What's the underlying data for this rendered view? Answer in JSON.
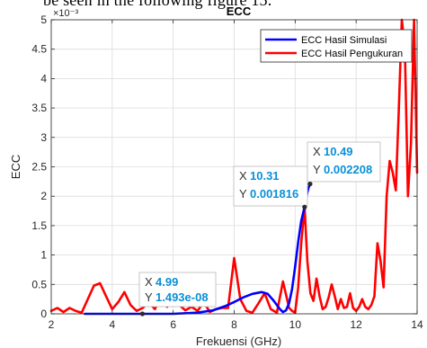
{
  "caption": "be seen in the following figure 15.",
  "chart_data": {
    "type": "line",
    "title": "ECC",
    "xlabel": "Frekuensi (GHz)",
    "ylabel": "ECC",
    "xlim": [
      2,
      14
    ],
    "ylim": [
      0,
      0.005
    ],
    "x_ticks": [
      2,
      4,
      6,
      8,
      10,
      12,
      14
    ],
    "x_tick_labels": [
      "2",
      "4",
      "6",
      "8",
      "10",
      "12",
      "14"
    ],
    "y_ticks": [
      0,
      0.0005,
      0.001,
      0.0015,
      0.002,
      0.0025,
      0.003,
      0.0035,
      0.004,
      0.0045,
      0.005
    ],
    "y_tick_labels": [
      "0",
      "0.5",
      "1",
      "1.5",
      "2",
      "2.5",
      "3",
      "3.5",
      "4",
      "4.5",
      "5"
    ],
    "y_exponent_label": "×10⁻³",
    "grid": true,
    "legend_position": "top-right",
    "series": [
      {
        "name": "ECC Hasil Simulasi",
        "color": "#0000ff",
        "x": [
          3.1,
          4.0,
          5.0,
          6.0,
          6.8,
          7.3,
          7.7,
          8.0,
          8.3,
          8.6,
          8.9,
          9.1,
          9.3,
          9.5,
          9.6,
          9.7,
          9.8,
          9.9,
          10.0,
          10.1,
          10.2,
          10.31,
          10.35,
          10.4,
          10.45,
          10.49
        ],
        "y": [
          0,
          0,
          1.493e-08,
          0,
          2e-05,
          6e-05,
          0.00013,
          0.0002,
          0.00028,
          0.00034,
          0.00037,
          0.00034,
          0.00022,
          8e-05,
          3e-05,
          6e-05,
          0.00018,
          0.00042,
          0.0008,
          0.00122,
          0.00158,
          0.001816,
          0.00193,
          0.00207,
          0.00216,
          0.002208
        ]
      },
      {
        "name": "ECC Hasil Pengukuran",
        "color": "#ff0000",
        "x": [
          2.0,
          2.2,
          2.4,
          2.6,
          2.8,
          3.0,
          3.2,
          3.4,
          3.6,
          3.8,
          4.0,
          4.2,
          4.4,
          4.6,
          4.8,
          5.0,
          5.2,
          5.4,
          5.6,
          5.8,
          6.0,
          6.2,
          6.4,
          6.6,
          6.8,
          7.0,
          7.2,
          7.4,
          7.6,
          7.8,
          8.0,
          8.2,
          8.4,
          8.6,
          8.8,
          9.0,
          9.2,
          9.4,
          9.6,
          9.8,
          9.9,
          10.0,
          10.1,
          10.2,
          10.31,
          10.4,
          10.5,
          10.6,
          10.7,
          10.8,
          10.9,
          11.0,
          11.1,
          11.2,
          11.3,
          11.4,
          11.5,
          11.6,
          11.7,
          11.8,
          11.9,
          12.0,
          12.1,
          12.2,
          12.3,
          12.4,
          12.5,
          12.6,
          12.7,
          12.8,
          12.9,
          13.0,
          13.1,
          13.2,
          13.3,
          13.4,
          13.5,
          13.6,
          13.7,
          13.8,
          13.9,
          14.0
        ],
        "y": [
          5e-05,
          0.0001,
          3e-05,
          0.0001,
          5e-05,
          2e-05,
          0.00025,
          0.00048,
          0.00052,
          0.0003,
          8e-05,
          0.0002,
          0.00037,
          0.00015,
          5e-05,
          0.0001,
          0.0002,
          8e-05,
          0.00032,
          0.00012,
          0.0004,
          0.00015,
          6e-05,
          0.00012,
          5e-05,
          0.0002,
          3e-05,
          8e-05,
          0.0001,
          0.0001,
          0.00095,
          0.00025,
          5e-05,
          2e-05,
          0.00018,
          0.00035,
          8e-05,
          2e-05,
          0.00055,
          0.0001,
          5e-05,
          2e-05,
          0.00045,
          0.0012,
          0.001816,
          0.0009,
          0.00035,
          0.00022,
          0.0006,
          0.0003,
          8e-05,
          0.00012,
          0.00028,
          0.0005,
          0.0003,
          8e-05,
          0.00025,
          0.0001,
          0.00012,
          0.00035,
          0.0001,
          5e-05,
          0.00012,
          0.00025,
          0.00012,
          8e-05,
          0.00015,
          0.0003,
          0.0012,
          0.0009,
          0.00045,
          0.002,
          0.0026,
          0.0024,
          0.0021,
          0.0035,
          0.005,
          0.0045,
          0.002,
          0.0029,
          0.005,
          0.0024
        ]
      }
    ],
    "datatips": [
      {
        "x_text": "4.99",
        "y_text": "1.493e-08",
        "x": 4.99,
        "y": 1.493e-08
      },
      {
        "x_text": "10.31",
        "y_text": "0.001816",
        "x": 10.31,
        "y": 0.001816
      },
      {
        "x_text": "10.49",
        "y_text": "0.002208",
        "x": 10.49,
        "y": 0.002208
      }
    ],
    "datatip_x_key": "X",
    "datatip_y_key": "Y"
  }
}
